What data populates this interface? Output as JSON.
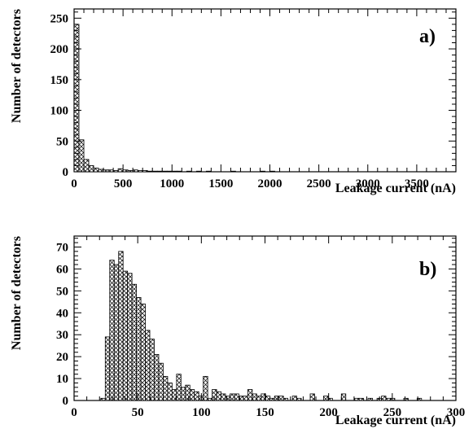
{
  "chart_data": [
    {
      "type": "bar",
      "panel_label": "a)",
      "xlabel": "Leakage current (nA)",
      "ylabel": "Number of detectors",
      "xlim": [
        0,
        3900
      ],
      "ylim": [
        0,
        265
      ],
      "x_ticks": [
        0,
        500,
        1000,
        1500,
        2000,
        2500,
        3000,
        3500
      ],
      "y_ticks": [
        0,
        50,
        100,
        150,
        200,
        250
      ],
      "grid": false,
      "bin_width": 50,
      "x": [
        0,
        50,
        100,
        150,
        200,
        250,
        300,
        350,
        400,
        450,
        500,
        550,
        600,
        650,
        700,
        750,
        800,
        850,
        900,
        950,
        1000,
        1050,
        1100,
        1150,
        1200,
        1250,
        1300,
        1350,
        1400,
        1450,
        1500,
        1550,
        1600,
        1650,
        1700,
        1750,
        1800,
        1850,
        1900,
        1950,
        2000
      ],
      "values": [
        240,
        52,
        20,
        10,
        6,
        4,
        3,
        3,
        2,
        5,
        3,
        2,
        3,
        2,
        2,
        1,
        1,
        1,
        1,
        1,
        1,
        1,
        0,
        1,
        0,
        1,
        0,
        1,
        0,
        0,
        0,
        0,
        1,
        0,
        0,
        0,
        0,
        0,
        1,
        0,
        1
      ]
    },
    {
      "type": "bar",
      "panel_label": "b)",
      "xlabel": "Leakage current (nA)",
      "ylabel": "Number of detectors",
      "xlim": [
        0,
        300
      ],
      "ylim": [
        0,
        75
      ],
      "x_ticks": [
        0,
        50,
        100,
        150,
        200,
        250,
        300
      ],
      "y_ticks": [
        0,
        10,
        20,
        30,
        40,
        50,
        60,
        70
      ],
      "grid": false,
      "bin_width": 3.5,
      "x": [
        21,
        24.5,
        28,
        31.5,
        35,
        38.5,
        42,
        45.5,
        49,
        52.5,
        56,
        59.5,
        63,
        66.5,
        70,
        73.5,
        77,
        80.5,
        84,
        87.5,
        91,
        94.5,
        98,
        101.5,
        105,
        108.5,
        112,
        115.5,
        119,
        122.5,
        126,
        129.5,
        133,
        136.5,
        140,
        143.5,
        147,
        150.5,
        154,
        157.5,
        161,
        164.5,
        168,
        171.5,
        175,
        178.5,
        182,
        185.5,
        189,
        192.5,
        196,
        199.5,
        203,
        206.5,
        210,
        213.5,
        217,
        220.5,
        224,
        227.5,
        231,
        234.5,
        238,
        241.5,
        245,
        248.5,
        252,
        255.5,
        259,
        262.5,
        266,
        269.5,
        273,
        276.5
      ],
      "values": [
        1,
        29,
        64,
        62,
        68,
        59,
        58,
        53,
        47,
        44,
        32,
        28,
        21,
        17,
        11,
        8,
        5,
        12,
        6,
        7,
        5,
        4,
        2,
        11,
        1,
        5,
        4,
        3,
        2,
        3,
        3,
        2,
        2,
        5,
        3,
        2,
        3,
        2,
        1,
        2,
        2,
        1,
        0,
        2,
        1,
        0,
        0,
        3,
        0,
        0,
        2,
        1,
        0,
        0,
        3,
        0,
        0,
        1,
        1,
        0,
        1,
        0,
        1,
        2,
        1,
        1,
        0,
        0,
        1,
        0,
        0,
        1,
        0,
        0
      ]
    }
  ]
}
